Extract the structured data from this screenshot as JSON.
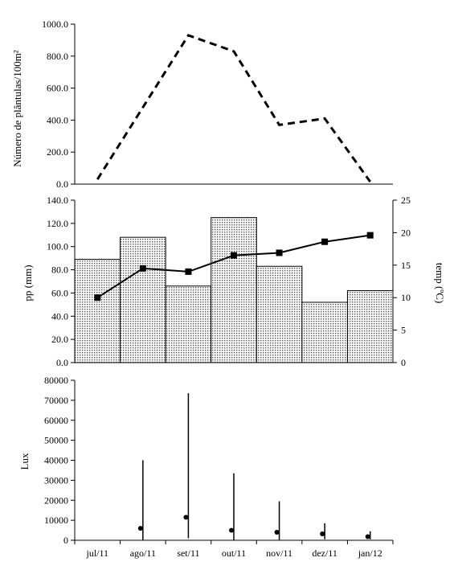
{
  "chart_data": [
    {
      "type": "line",
      "categories": [
        "jul/11",
        "ago/11",
        "set/11",
        "out/11",
        "nov/11",
        "dez/11",
        "jan/12"
      ],
      "series": [
        {
          "values": [
            30,
            480,
            930,
            830,
            370,
            410,
            15
          ],
          "style": "dashed",
          "color": "#000000"
        }
      ],
      "ylabel": "Número de plântulas/100m²",
      "ylim": [
        0,
        1000
      ],
      "yticks": [
        "1000.0",
        "800.0",
        "600.0",
        "400.0",
        "200.0",
        "0.0"
      ]
    },
    {
      "type": "bar",
      "categories": [
        "jul/11",
        "ago/11",
        "set/11",
        "out/11",
        "nov/11",
        "dez/11",
        "jan/12"
      ],
      "series": [
        {
          "values": [
            89,
            108,
            66,
            125,
            83,
            52,
            62
          ],
          "axis": "left",
          "fill": "dotted"
        },
        {
          "type": "line",
          "values": [
            10.0,
            14.5,
            14.0,
            16.5,
            16.9,
            18.6,
            19.6
          ],
          "axis": "right",
          "marker": "square",
          "color": "#000000"
        }
      ],
      "ylabel": "pp (mm)",
      "ylim": [
        0,
        140
      ],
      "yticks": [
        "140.0",
        "120.0",
        "100.0",
        "80.0",
        "60.0",
        "40.0",
        "20.0",
        "0.0"
      ],
      "y2label": "temp (ºC)",
      "y2lim": [
        0,
        25
      ],
      "y2ticks": [
        "25",
        "20",
        "15",
        "10",
        "5",
        "0"
      ]
    },
    {
      "type": "scatter",
      "categories": [
        "jul/11",
        "ago/11",
        "set/11",
        "out/11",
        "nov/11",
        "dez/11",
        "jan/12"
      ],
      "series": [
        {
          "points": [
            null,
            6000,
            11500,
            5000,
            4000,
            3200,
            1800
          ],
          "max": [
            null,
            40000,
            73500,
            33500,
            19500,
            8500,
            4500
          ],
          "min": [
            null,
            0,
            1000,
            0,
            0,
            500,
            500
          ]
        }
      ],
      "ylabel": "Lux",
      "ylim": [
        0,
        80000
      ],
      "yticks": [
        "80000",
        "70000",
        "60000",
        "50000",
        "40000",
        "30000",
        "20000",
        "10000",
        "0"
      ],
      "xticks": [
        "jul/11",
        "ago/11",
        "set/11",
        "out/11",
        "nov/11",
        "dez/11",
        "jan/12"
      ]
    }
  ]
}
